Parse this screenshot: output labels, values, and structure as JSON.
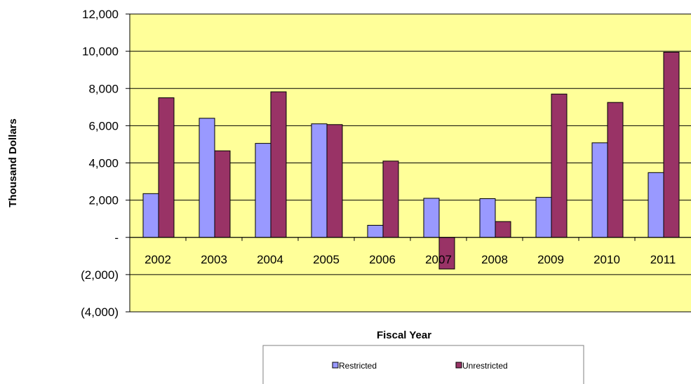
{
  "chart_data": {
    "type": "bar",
    "title": "",
    "xlabel": "Fiscal Year",
    "ylabel": "Thousand  Dollars",
    "categories": [
      "2002",
      "2003",
      "2004",
      "2005",
      "2006",
      "2007",
      "2008",
      "2009",
      "2010",
      "2011"
    ],
    "series": [
      {
        "name": "Restricted",
        "color": "#9999ff",
        "values": [
          2350,
          6400,
          5050,
          6100,
          650,
          2100,
          2080,
          2150,
          5080,
          3480
        ]
      },
      {
        "name": "Unrestricted",
        "color": "#993366",
        "values": [
          7500,
          4650,
          7820,
          6060,
          4100,
          -1700,
          850,
          7700,
          7250,
          9950
        ]
      }
    ],
    "ylim": [
      -4000,
      12000
    ],
    "yticks": [
      -4000,
      -2000,
      0,
      2000,
      4000,
      6000,
      8000,
      10000,
      12000
    ],
    "ytick_labels": [
      "(4,000)",
      "(2,000)",
      "-",
      "2,000",
      "4,000",
      "6,000",
      "8,000",
      "10,000",
      "12,000"
    ],
    "grid": true,
    "plot_background": "#ffff99",
    "legend_position": "bottom"
  }
}
